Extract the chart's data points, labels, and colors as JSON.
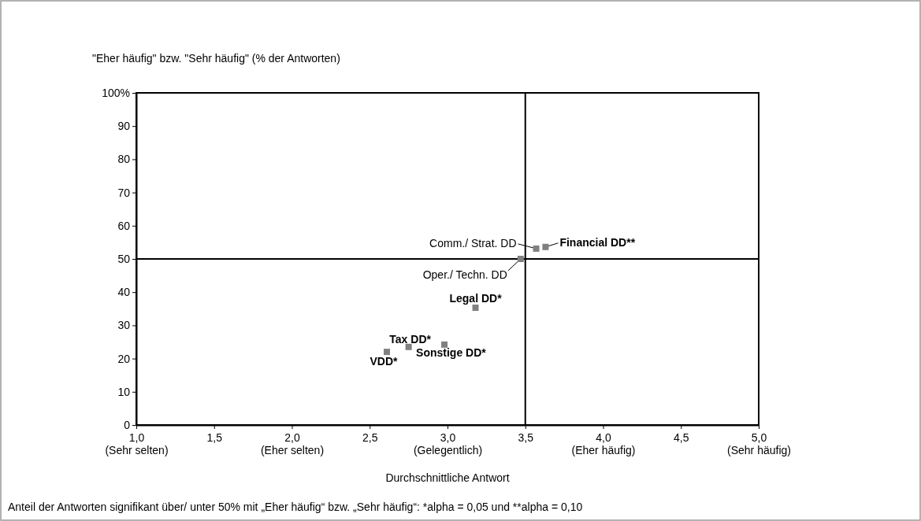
{
  "chart_data": {
    "type": "scatter",
    "ylabel": "\"Eher häufig\" bzw. \"Sehr häufig\" (% der Antworten)",
    "xlabel": "Durchschnittliche Antwort",
    "xlim": [
      1,
      5
    ],
    "xticks": [
      {
        "value": 1,
        "label": "1,0\n(Sehr selten)"
      },
      {
        "value": 1.5,
        "label": "1,5"
      },
      {
        "value": 2,
        "label": "2,0\n(Eher selten)"
      },
      {
        "value": 2.5,
        "label": "2,5"
      },
      {
        "value": 3,
        "label": "3,0\n(Gelegentlich)"
      },
      {
        "value": 3.5,
        "label": "3,5"
      },
      {
        "value": 4,
        "label": "4,0\n(Eher häufig)"
      },
      {
        "value": 4.5,
        "label": "4,5"
      },
      {
        "value": 5,
        "label": "5,0\n(Sehr häufig)"
      }
    ],
    "ylim": [
      0,
      100
    ],
    "yticks": [
      0,
      10,
      20,
      30,
      40,
      50,
      60,
      70,
      80,
      90,
      {
        "value": 100,
        "label": "100%"
      }
    ],
    "marker": "square",
    "ref_lines": [
      {
        "axis": "x",
        "value": 3.5
      },
      {
        "axis": "y",
        "value": 50
      }
    ],
    "series": [
      {
        "name": "Financial DD**",
        "color": "#808080",
        "x": [
          3.63
        ],
        "values": [
          53.6
        ]
      },
      {
        "name": "Comm./ Strat. DD",
        "color": "#808080",
        "x": [
          3.57
        ],
        "values": [
          53.1
        ]
      },
      {
        "name": "Oper./ Techn. DD",
        "color": "#808080",
        "x": [
          3.47
        ],
        "values": [
          50.0
        ]
      },
      {
        "name": "Legal DD*",
        "color": "#808080",
        "x": [
          3.18
        ],
        "values": [
          35.3
        ]
      },
      {
        "name": "Sonstige DD*",
        "color": "#808080",
        "x": [
          2.98
        ],
        "values": [
          24.2
        ]
      },
      {
        "name": "Tax DD*",
        "color": "#808080",
        "x": [
          2.75
        ],
        "values": [
          23.5
        ]
      },
      {
        "name": "VDD*",
        "color": "#808080",
        "x": [
          2.61
        ],
        "values": [
          22.0
        ]
      }
    ],
    "annotations": [
      "Anteil der Antworten signifikant über/ unter 50% mit „Eher häufig“ bzw. „Sehr häufig“: *alpha = 0,05 und **alpha = 0,10"
    ]
  }
}
